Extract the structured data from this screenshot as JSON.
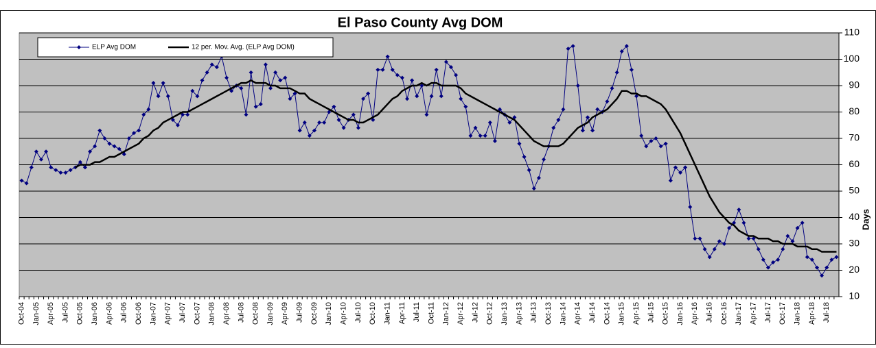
{
  "chart_data": {
    "type": "line",
    "title": "El Paso County Avg DOM",
    "y_label": "Days",
    "categories": [
      "Oct-04",
      null,
      null,
      "Jan-05",
      null,
      null,
      "Apr-05",
      null,
      null,
      "Jul-05",
      null,
      null,
      "Oct-05",
      null,
      null,
      "Jan-06",
      null,
      null,
      "Apr-06",
      null,
      null,
      "Jul-06",
      null,
      null,
      "Oct-06",
      null,
      null,
      "Jan-07",
      null,
      null,
      "Apr-07",
      null,
      null,
      "Jul-07",
      null,
      null,
      "Oct-07",
      null,
      null,
      "Jan-08",
      null,
      null,
      "Apr-08",
      null,
      null,
      "Jul-08",
      null,
      null,
      "Oct-08",
      null,
      null,
      "Jan-09",
      null,
      null,
      "Apr-09",
      null,
      null,
      "Jul-09",
      null,
      null,
      "Oct-09",
      null,
      null,
      "Jan-10",
      null,
      null,
      "Apr-10",
      null,
      null,
      "Jul-10",
      null,
      null,
      "Oct-10",
      null,
      null,
      "Jan-11",
      null,
      null,
      "Apr-11",
      null,
      null,
      "Jul-11",
      null,
      null,
      "Oct-11",
      null,
      null,
      "Jan-12",
      null,
      null,
      "Apr-12",
      null,
      null,
      "Jul-12",
      null,
      null,
      "Oct-12",
      null,
      null,
      "Jan-13",
      null,
      null,
      "Apr-13",
      null,
      null,
      "Jul-13",
      null,
      null,
      "Oct-13",
      null,
      null,
      "Jan-14",
      null,
      null,
      "Apr-14",
      null,
      null,
      "Jul-14",
      null,
      null,
      "Oct-14",
      null,
      null,
      "Jan-15",
      null,
      null,
      "Apr-15",
      null,
      null,
      "Jul-15",
      null,
      null,
      "Oct-15",
      null,
      null,
      "Jan-16",
      null,
      null,
      "Apr-16",
      null,
      null,
      "Jul-16",
      null,
      null,
      "Oct-16",
      null,
      null,
      "Jan-17",
      null,
      null,
      "Apr-17",
      null,
      null,
      "Jul-17",
      null,
      null,
      "Oct-17",
      null,
      null,
      "Jan-18",
      null,
      null,
      "Apr-18",
      null,
      null,
      "Jul-18",
      null,
      null
    ],
    "series": [
      {
        "name": "ELP Avg DOM",
        "color": "#000080",
        "marker": "diamond",
        "values": [
          54,
          53,
          59,
          65,
          62,
          65,
          59,
          58,
          57,
          57,
          58,
          59,
          61,
          59,
          65,
          67,
          73,
          70,
          68,
          67,
          66,
          64,
          70,
          72,
          73,
          79,
          81,
          91,
          86,
          91,
          86,
          77,
          75,
          79,
          79,
          88,
          86,
          92,
          95,
          98,
          97,
          101,
          93,
          88,
          90,
          89,
          79,
          95,
          82,
          83,
          98,
          89,
          95,
          92,
          93,
          85,
          87,
          73,
          76,
          71,
          73,
          76,
          76,
          80,
          82,
          77,
          74,
          77,
          79,
          74,
          85,
          87,
          77,
          96,
          96,
          101,
          96,
          94,
          93,
          85,
          92,
          86,
          90,
          79,
          86,
          96,
          86,
          99,
          97,
          94,
          85,
          82,
          71,
          74,
          71,
          71,
          76,
          69,
          81,
          79,
          76,
          78,
          68,
          63,
          58,
          51,
          55,
          62,
          67,
          74,
          77,
          81,
          104,
          105,
          90,
          73,
          78,
          73,
          81,
          80,
          84,
          89,
          95,
          103,
          105,
          96,
          86,
          71,
          67,
          69,
          70,
          67,
          68,
          54,
          59,
          57,
          59,
          44,
          32,
          32,
          28,
          25,
          28,
          31,
          30,
          36,
          38,
          43,
          38,
          32,
          32,
          28,
          24,
          21,
          23,
          24,
          28,
          33,
          31,
          36,
          38,
          25,
          24,
          21,
          18,
          21,
          24,
          25
        ]
      },
      {
        "name": "12 per. Mov. Avg. (ELP Avg DOM)",
        "color": "#000000",
        "values": [
          null,
          null,
          null,
          null,
          null,
          null,
          null,
          null,
          null,
          null,
          null,
          59,
          60,
          60,
          60,
          61,
          61,
          62,
          63,
          63,
          64,
          65,
          66,
          67,
          68,
          70,
          71,
          73,
          74,
          76,
          77,
          78,
          79,
          80,
          80,
          81,
          82,
          83,
          84,
          85,
          86,
          87,
          88,
          89,
          90,
          91,
          91,
          92,
          91,
          91,
          91,
          90,
          90,
          89,
          89,
          89,
          88,
          87,
          87,
          85,
          84,
          83,
          82,
          81,
          80,
          79,
          78,
          77,
          77,
          76,
          76,
          77,
          78,
          79,
          81,
          83,
          85,
          86,
          88,
          89,
          90,
          90,
          91,
          90,
          91,
          91,
          90,
          90,
          90,
          90,
          89,
          87,
          86,
          85,
          84,
          83,
          82,
          81,
          80,
          79,
          78,
          77,
          75,
          73,
          71,
          69,
          68,
          67,
          67,
          67,
          67,
          68,
          70,
          72,
          74,
          75,
          76,
          78,
          79,
          80,
          81,
          83,
          85,
          88,
          88,
          87,
          87,
          86,
          86,
          85,
          84,
          83,
          81,
          78,
          75,
          72,
          68,
          64,
          60,
          56,
          52,
          48,
          45,
          42,
          40,
          38,
          37,
          35,
          34,
          33,
          33,
          32,
          32,
          32,
          31,
          31,
          30,
          30,
          30,
          29,
          29,
          29,
          28,
          28,
          27,
          27,
          27,
          27
        ]
      }
    ],
    "ylim": [
      10,
      110
    ],
    "yticks": [
      10,
      20,
      30,
      40,
      50,
      60,
      70,
      80,
      90,
      100,
      110
    ],
    "grid": true,
    "y_axis_side": "right",
    "legend": "top-left"
  }
}
